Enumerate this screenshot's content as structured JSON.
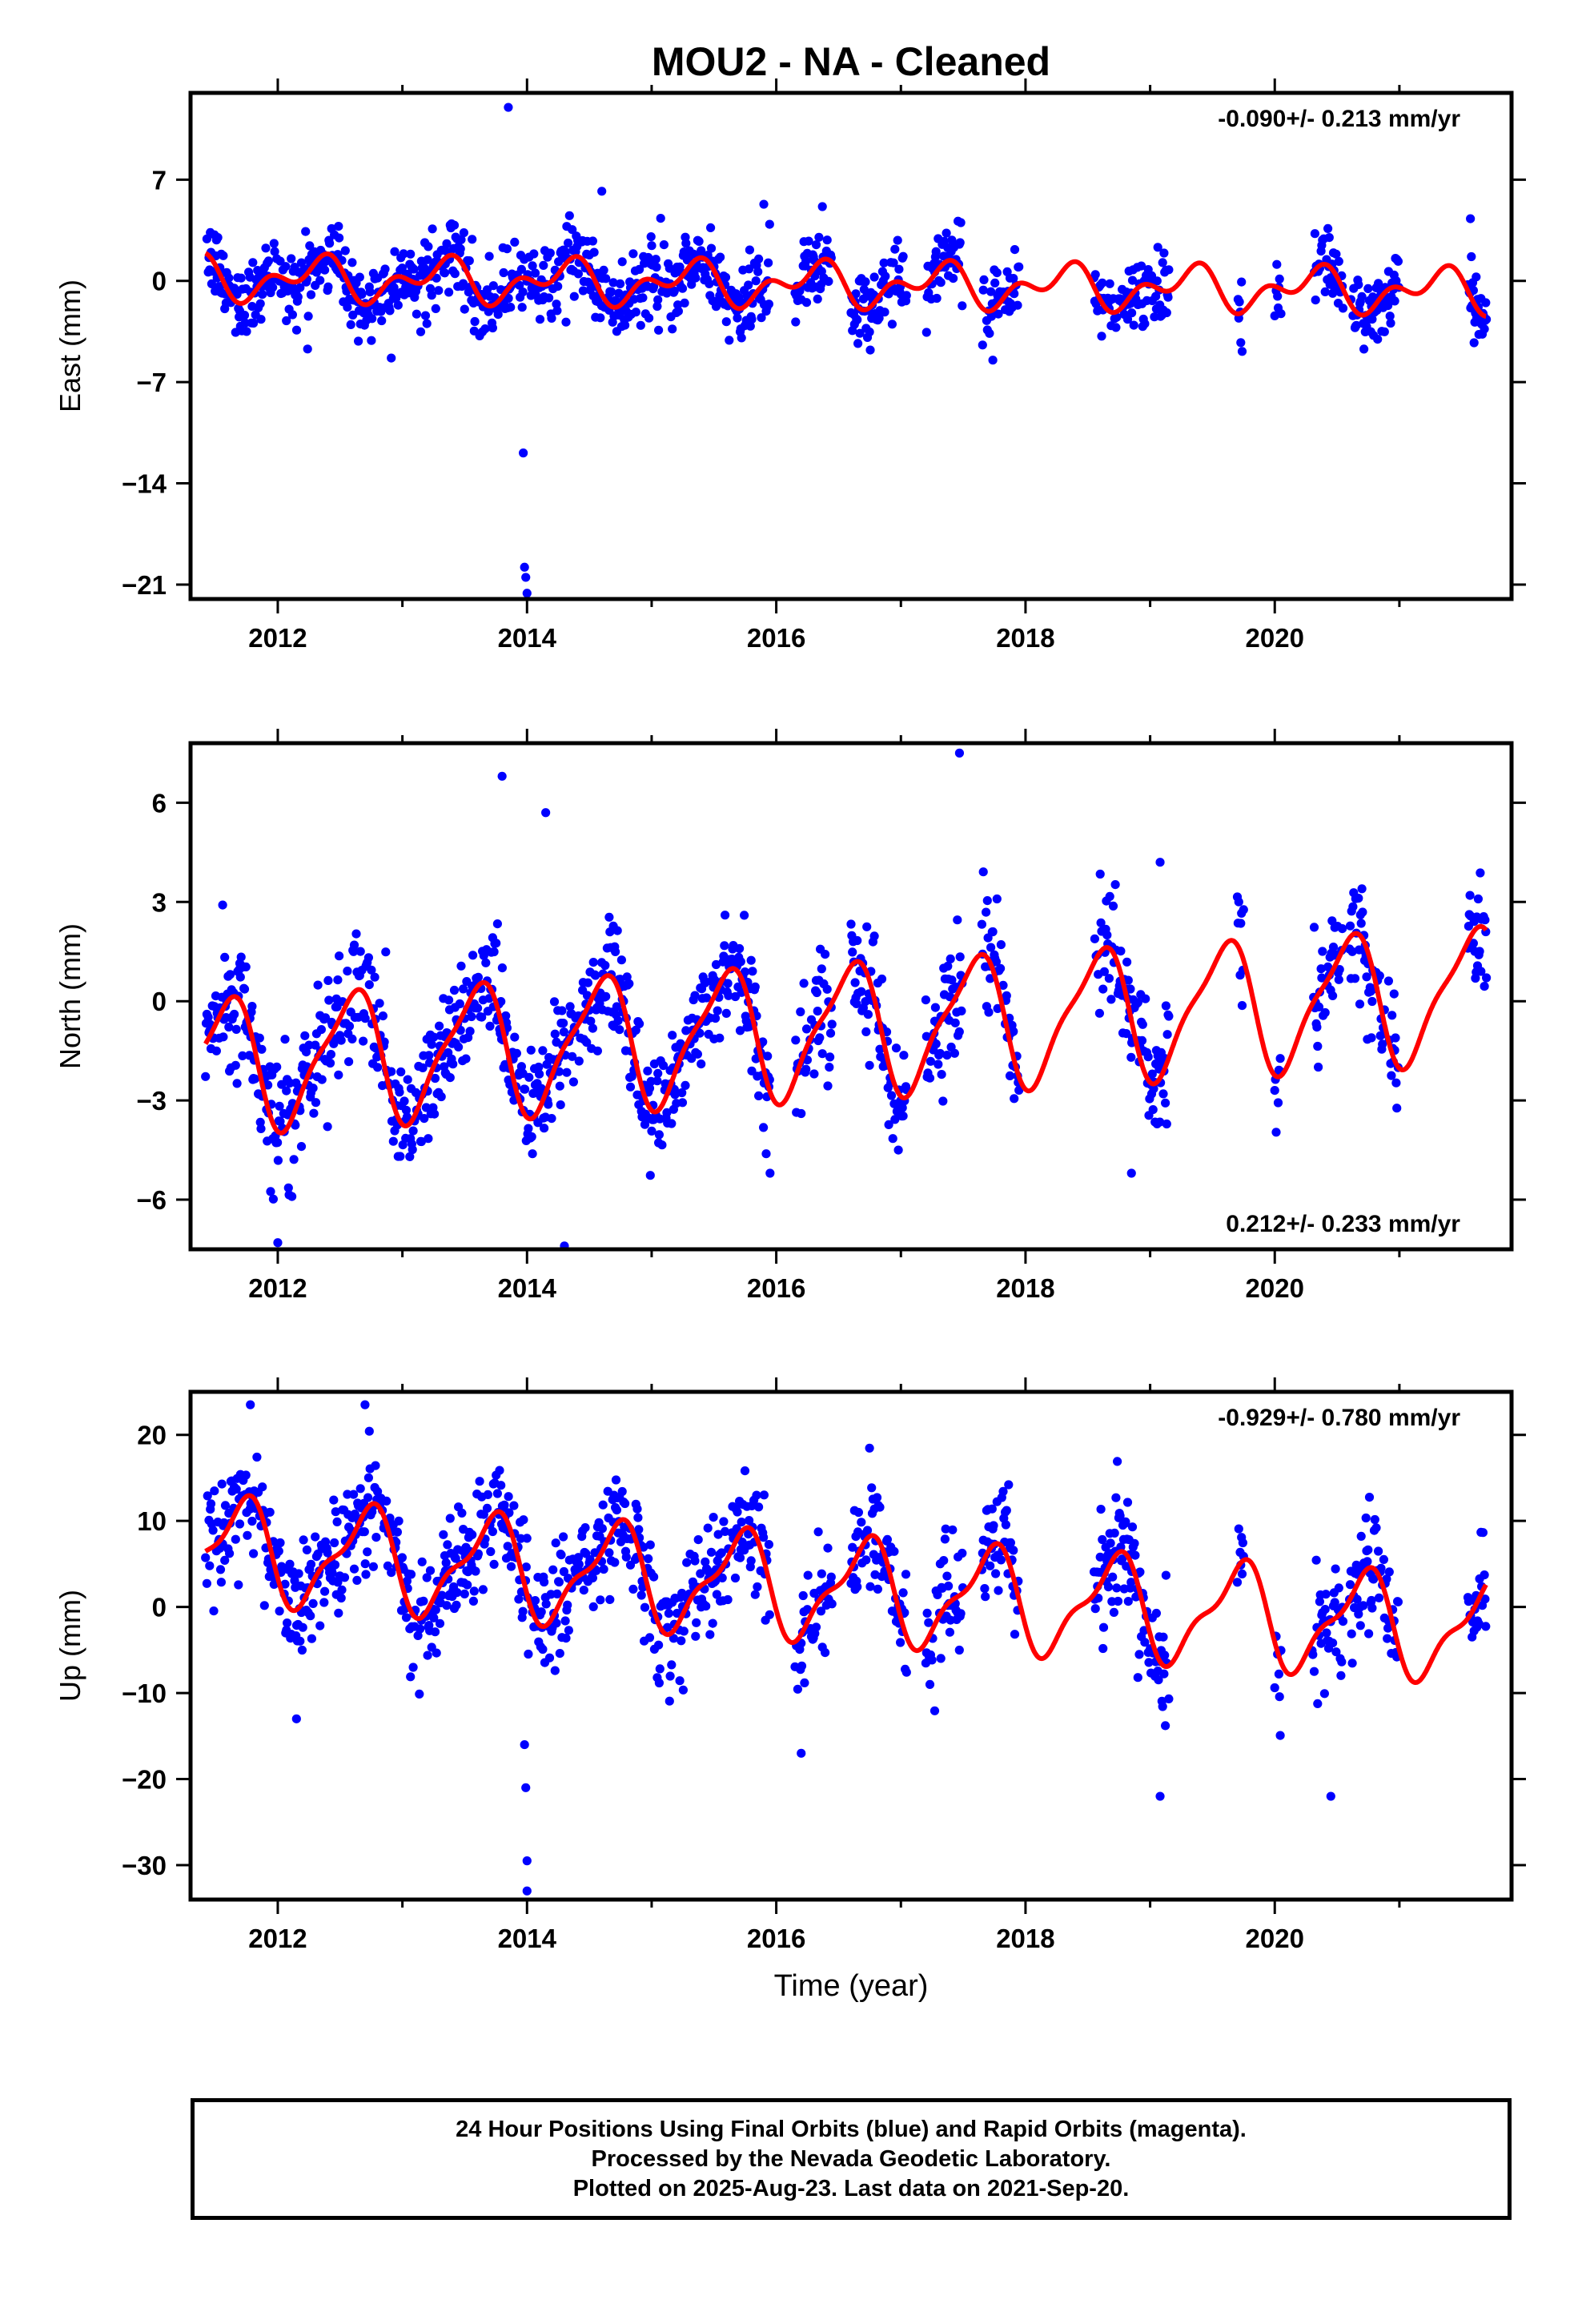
{
  "figure": {
    "title": "MOU2  - NA - Cleaned",
    "caption": [
      "24 Hour Positions Using Final Orbits (blue) and Rapid Orbits (magenta).",
      "Processed by the Nevada Geodetic Laboratory.",
      "Plotted on 2025-Aug-23. Last data on 2021-Sep-20."
    ]
  },
  "colors": {
    "observations": "#0000ff",
    "model": "#ff0000",
    "frame": "#000000"
  },
  "chart_data": [
    {
      "type": "scatter",
      "component": "east",
      "ylabel": "East (mm)",
      "xlabel": "",
      "xlim": [
        2011.3,
        2021.9
      ],
      "ylim": [
        -22,
        13
      ],
      "xticks": [
        2012,
        2014,
        2016,
        2018,
        2020
      ],
      "yticks": [
        -21,
        -14,
        -7,
        0,
        7
      ],
      "rate_label": "-0.090+/- 0.213 mm/yr",
      "rate_position": "top-right",
      "model": {
        "offset": -0.2,
        "annual_amp": 1.1,
        "annual_phase": 0.05,
        "semi_amp": 0.9,
        "semi_phase": 0.3,
        "rate": -0.09
      },
      "segments": [
        [
          2011.42,
          2015.95
        ],
        [
          2016.15,
          2016.45
        ],
        [
          2016.6,
          2017.05
        ],
        [
          2017.2,
          2017.5
        ],
        [
          2017.65,
          2017.95
        ],
        [
          2018.55,
          2019.15
        ],
        [
          2019.7,
          2019.75
        ],
        [
          2020.0,
          2020.05
        ],
        [
          2020.3,
          2020.55
        ],
        [
          2020.6,
          2021.0
        ],
        [
          2021.55,
          2021.7
        ]
      ],
      "scatter_sigma": 1.3,
      "outliers": [
        [
          2013.85,
          12.0
        ],
        [
          2013.97,
          -11.9
        ],
        [
          2013.98,
          -19.8
        ],
        [
          2013.99,
          -20.5
        ],
        [
          2014.0,
          -21.6
        ],
        [
          2014.6,
          6.2
        ],
        [
          2015.9,
          5.3
        ],
        [
          2021.57,
          4.3
        ]
      ]
    },
    {
      "type": "scatter",
      "component": "north",
      "ylabel": "North (mm)",
      "xlabel": "",
      "xlim": [
        2011.3,
        2021.9
      ],
      "ylim": [
        -7.5,
        7.8
      ],
      "xticks": [
        2012,
        2014,
        2016,
        2018,
        2020
      ],
      "yticks": [
        -6,
        -3,
        0,
        3,
        6
      ],
      "rate_label": "0.212+/- 0.233 mm/yr",
      "rate_position": "bottom-right",
      "model": {
        "offset": -0.95,
        "annual_amp": 1.9,
        "annual_phase": 0.33,
        "semi_amp": 0.5,
        "semi_phase": 0.1,
        "rate": 0.212
      },
      "segments": [
        [
          2011.42,
          2015.95
        ],
        [
          2016.15,
          2016.45
        ],
        [
          2016.6,
          2017.05
        ],
        [
          2017.2,
          2017.5
        ],
        [
          2017.65,
          2017.95
        ],
        [
          2018.55,
          2019.15
        ],
        [
          2019.7,
          2019.75
        ],
        [
          2020.0,
          2020.05
        ],
        [
          2020.3,
          2020.55
        ],
        [
          2020.6,
          2021.0
        ],
        [
          2021.55,
          2021.7
        ]
      ],
      "scatter_sigma": 0.9,
      "outliers": [
        [
          2013.8,
          6.8
        ],
        [
          2014.15,
          5.7
        ],
        [
          2012.0,
          -7.3
        ],
        [
          2014.3,
          -7.4
        ],
        [
          2017.47,
          7.5
        ],
        [
          2015.95,
          -5.2
        ],
        [
          2018.85,
          -5.2
        ],
        [
          2019.08,
          4.2
        ]
      ]
    },
    {
      "type": "scatter",
      "component": "up",
      "ylabel": "Up (mm)",
      "xlabel": "Time (year)",
      "xlim": [
        2011.3,
        2021.9
      ],
      "ylim": [
        -34,
        25
      ],
      "xticks": [
        2012,
        2014,
        2016,
        2018,
        2020
      ],
      "yticks": [
        -30,
        -20,
        -10,
        0,
        10,
        20
      ],
      "rate_label": "-0.929+/- 0.780 mm/yr",
      "rate_position": "top-right",
      "model": {
        "offset": 2.5,
        "annual_amp": 5.5,
        "annual_phase": 0.45,
        "semi_amp": 2.0,
        "semi_phase": 0.2,
        "rate": -0.929
      },
      "segments": [
        [
          2011.42,
          2015.95
        ],
        [
          2016.15,
          2016.45
        ],
        [
          2016.6,
          2017.05
        ],
        [
          2017.2,
          2017.5
        ],
        [
          2017.65,
          2017.95
        ],
        [
          2018.55,
          2019.15
        ],
        [
          2019.7,
          2019.75
        ],
        [
          2020.0,
          2020.05
        ],
        [
          2020.3,
          2020.55
        ],
        [
          2020.6,
          2021.0
        ],
        [
          2021.55,
          2021.7
        ]
      ],
      "scatter_sigma": 3.4,
      "outliers": [
        [
          2011.78,
          23.5
        ],
        [
          2012.7,
          23.5
        ],
        [
          2013.98,
          -16.0
        ],
        [
          2013.99,
          -21.0
        ],
        [
          2014.0,
          -29.5
        ],
        [
          2014.0,
          -33.0
        ],
        [
          2016.2,
          -17.0
        ],
        [
          2020.45,
          -22.0
        ],
        [
          2019.08,
          -22.0
        ],
        [
          2012.15,
          -13.0
        ]
      ]
    }
  ]
}
